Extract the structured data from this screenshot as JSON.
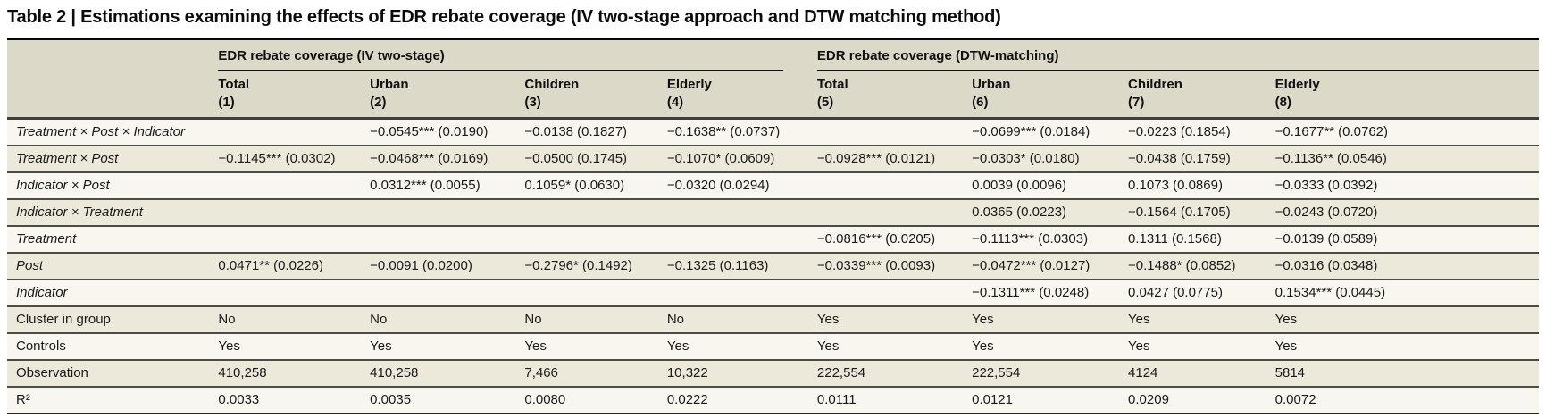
{
  "title": "Table 2 | Estimations examining the effects of EDR rebate coverage (IV two-stage approach and DTW matching method)",
  "colors": {
    "header_bg": "#ddd9c9",
    "row_bg": "#f8f6ee",
    "row_alt_bg": "#ece9da",
    "rule_dark": "#060606",
    "rule_gray": "#4c4c46"
  },
  "table": {
    "groups": [
      {
        "label": "EDR rebate coverage (IV two-stage)"
      },
      {
        "label": "EDR rebate coverage (DTW-matching)"
      }
    ],
    "columns": [
      {
        "label": "Total",
        "number": "(1)"
      },
      {
        "label": "Urban",
        "number": "(2)"
      },
      {
        "label": "Children",
        "number": "(3)"
      },
      {
        "label": "Elderly",
        "number": "(4)"
      },
      {
        "label": "Total",
        "number": "(5)"
      },
      {
        "label": "Urban",
        "number": "(6)"
      },
      {
        "label": "Children",
        "number": "(7)"
      },
      {
        "label": "Elderly",
        "number": "(8)"
      }
    ],
    "rows": [
      {
        "label": "Treatment × Post × Indicator",
        "italic": true,
        "cells": [
          "",
          "−0.0545*** (0.0190)",
          "−0.0138 (0.1827)",
          "−0.1638** (0.0737)",
          "",
          "−0.0699*** (0.0184)",
          "−0.0223 (0.1854)",
          "−0.1677** (0.0762)"
        ]
      },
      {
        "label": "Treatment × Post",
        "italic": true,
        "cells": [
          "−0.1145*** (0.0302)",
          "−0.0468*** (0.0169)",
          "−0.0500 (0.1745)",
          "−0.1070* (0.0609)",
          "−0.0928*** (0.0121)",
          "−0.0303* (0.0180)",
          "−0.0438 (0.1759)",
          "−0.1136** (0.0546)"
        ]
      },
      {
        "label": "Indicator × Post",
        "italic": true,
        "cells": [
          "",
          "0.0312*** (0.0055)",
          "0.1059* (0.0630)",
          "−0.0320 (0.0294)",
          "",
          "0.0039 (0.0096)",
          "0.1073 (0.0869)",
          "−0.0333 (0.0392)"
        ]
      },
      {
        "label": "Indicator × Treatment",
        "italic": true,
        "cells": [
          "",
          "",
          "",
          "",
          "",
          "0.0365 (0.0223)",
          "−0.1564 (0.1705)",
          "−0.0243 (0.0720)"
        ]
      },
      {
        "label": "Treatment",
        "italic": true,
        "cells": [
          "",
          "",
          "",
          "",
          "−0.0816*** (0.0205)",
          "−0.1113*** (0.0303)",
          "0.1311 (0.1568)",
          "−0.0139 (0.0589)"
        ]
      },
      {
        "label": "Post",
        "italic": true,
        "cells": [
          "0.0471** (0.0226)",
          "−0.0091 (0.0200)",
          "−0.2796* (0.1492)",
          "−0.1325 (0.1163)",
          "−0.0339*** (0.0093)",
          "−0.0472*** (0.0127)",
          "−0.1488* (0.0852)",
          "−0.0316 (0.0348)"
        ]
      },
      {
        "label": "Indicator",
        "italic": true,
        "cells": [
          "",
          "",
          "",
          "",
          "",
          "−0.1311*** (0.0248)",
          "0.0427 (0.0775)",
          "0.1534*** (0.0445)"
        ]
      },
      {
        "label": "Cluster in group",
        "italic": false,
        "cells": [
          "No",
          "No",
          "No",
          "No",
          "Yes",
          "Yes",
          "Yes",
          "Yes"
        ]
      },
      {
        "label": "Controls",
        "italic": false,
        "cells": [
          "Yes",
          "Yes",
          "Yes",
          "Yes",
          "Yes",
          "Yes",
          "Yes",
          "Yes"
        ]
      },
      {
        "label": "Observation",
        "italic": false,
        "cells": [
          "410,258",
          "410,258",
          "7,466",
          "10,322",
          "222,554",
          "222,554",
          "4124",
          "5814"
        ]
      },
      {
        "label": "R²",
        "italic": false,
        "cells": [
          "0.0033",
          "0.0035",
          "0.0080",
          "0.0222",
          "0.0111",
          "0.0121",
          "0.0209",
          "0.0072"
        ]
      }
    ]
  }
}
